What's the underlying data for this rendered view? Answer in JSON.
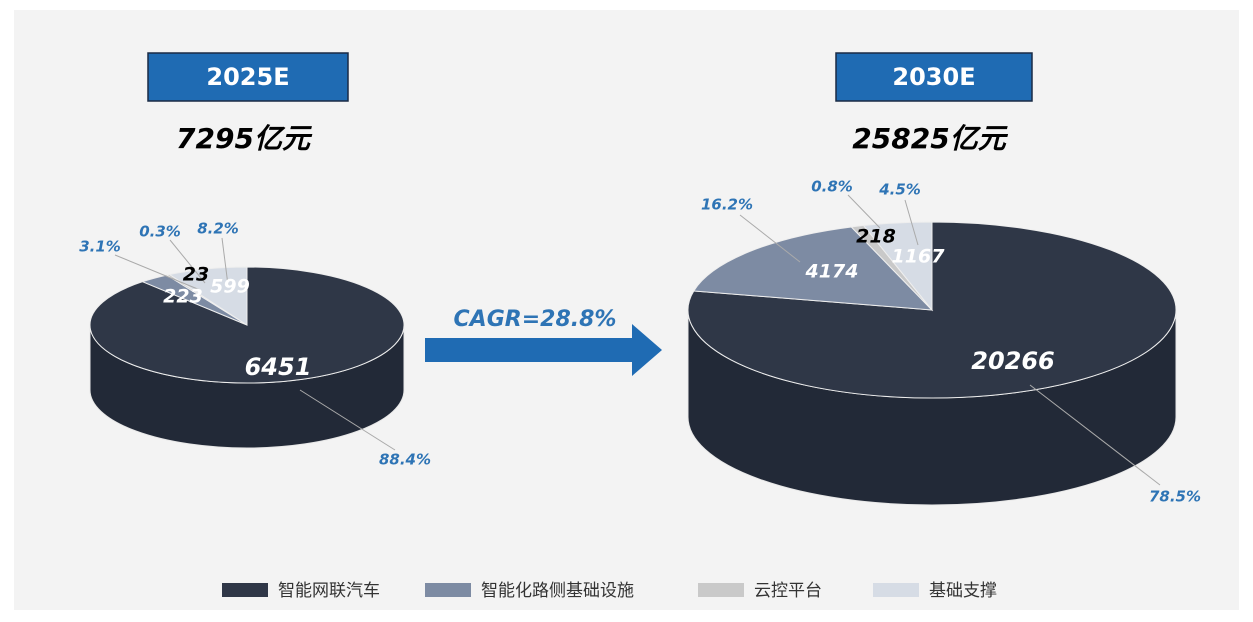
{
  "chart_data": [
    {
      "type": "pie",
      "title": "2025E",
      "subtitle": "7295亿元",
      "categories": [
        "智能网联汽车",
        "智能化路侧基础设施",
        "云控平台",
        "基础支撑"
      ],
      "values": [
        6451,
        223,
        23,
        599
      ],
      "percent_labels": [
        "88.4%",
        "3.1%",
        "0.3%",
        "8.2%"
      ],
      "colors": [
        "#2f3747",
        "#7d8ba3",
        "#c9c9c9",
        "#d6dce5"
      ],
      "annotation": "CAGR=28.8%"
    },
    {
      "type": "pie",
      "title": "2030E",
      "subtitle": "25825亿元",
      "categories": [
        "智能网联汽车",
        "智能化路侧基础设施",
        "云控平台",
        "基础支撑"
      ],
      "values": [
        20266,
        4174,
        218,
        1167
      ],
      "percent_labels": [
        "78.5%",
        "16.2%",
        "0.8%",
        "4.5%"
      ],
      "colors": [
        "#2f3747",
        "#7d8ba3",
        "#c9c9c9",
        "#d6dce5"
      ]
    }
  ]
}
